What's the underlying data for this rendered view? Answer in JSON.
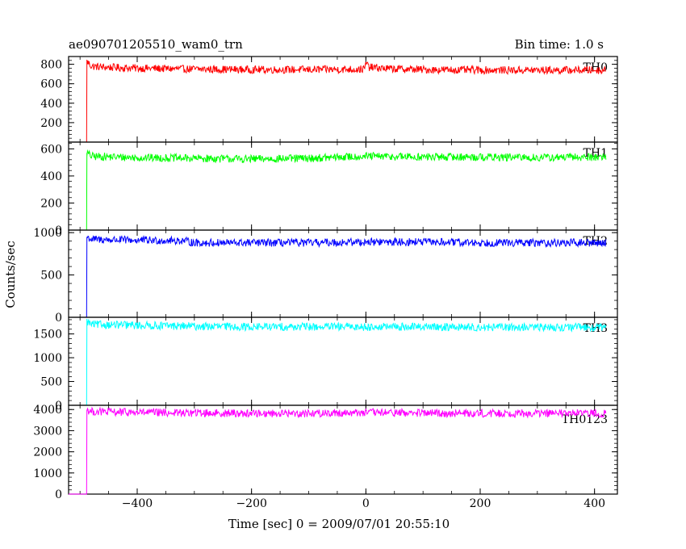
{
  "chart_data": {
    "type": "line",
    "title": "ae090701205510_wam0_trn",
    "subtitle": "Bin time: 1.0 s",
    "xlabel": "Time [sec] 0 = 2009/07/01 20:55:10",
    "ylabel": "Counts/sec",
    "xlim": [
      -520,
      440
    ],
    "x_ticks": [
      -400,
      -200,
      0,
      200,
      400
    ],
    "x_tick_labels": [
      "−400",
      "−200",
      "0",
      "200",
      "400"
    ],
    "panels": [
      {
        "name": "TH0",
        "color": "#ff0000",
        "ylim": [
          0,
          880
        ],
        "y_ticks": [
          0,
          200,
          400,
          600,
          800
        ],
        "y_tick_labels": [
          "",
          "200",
          "400",
          "600",
          "800"
        ],
        "series": [
          {
            "name": "TH0",
            "segments": [
              {
                "x": [
                  -520,
                  -490
                ],
                "y": [
                  0,
                  0
                ]
              },
              {
                "x": [
                  -488,
                  -480,
                  -460,
                  -400,
                  -300,
                  -200,
                  -100,
                  -2,
                  0,
                  5,
                  40,
                  100,
                  200,
                  300,
                  400,
                  420
                ],
                "y": [
                  830,
                  780,
                  770,
                  760,
                  750,
                  745,
                  745,
                  750,
                  820,
                  770,
                  755,
                  745,
                  740,
                  740,
                  740,
                  740
                ]
              }
            ]
          }
        ]
      },
      {
        "name": "TH1",
        "color": "#00ff00",
        "ylim": [
          0,
          650
        ],
        "y_ticks": [
          0,
          200,
          400,
          600
        ],
        "y_tick_labels": [
          "0",
          "200",
          "400",
          "600"
        ],
        "series": [
          {
            "name": "TH1",
            "segments": [
              {
                "x": [
                  -520,
                  -490
                ],
                "y": [
                  0,
                  0
                ]
              },
              {
                "x": [
                  -488,
                  -480,
                  -400,
                  -300,
                  -200,
                  -100,
                  0,
                  100,
                  200,
                  300,
                  400,
                  420
                ],
                "y": [
                  570,
                  545,
                  535,
                  530,
                  525,
                  530,
                  545,
                  540,
                  540,
                  535,
                  540,
                  540
                ]
              }
            ]
          }
        ]
      },
      {
        "name": "TH2",
        "color": "#0000ff",
        "ylim": [
          0,
          1030
        ],
        "y_ticks": [
          0,
          500,
          1000
        ],
        "y_tick_labels": [
          "0",
          "500",
          "1000"
        ],
        "series": [
          {
            "name": "TH2",
            "segments": [
              {
                "x": [
                  -520,
                  -490
                ],
                "y": [
                  0,
                  0
                ]
              },
              {
                "x": [
                  -488,
                  -480,
                  -400,
                  -320,
                  -300,
                  -200,
                  -100,
                  0,
                  100,
                  200,
                  300,
                  400,
                  420
                ],
                "y": [
                  950,
                  920,
                  910,
                  905,
                  880,
                  880,
                  880,
                  890,
                  890,
                  880,
                  880,
                  880,
                  880
                ]
              }
            ]
          }
        ]
      },
      {
        "name": "TH3",
        "color": "#00ffff",
        "ylim": [
          0,
          1850
        ],
        "y_ticks": [
          0,
          500,
          1000,
          1500
        ],
        "y_tick_labels": [
          "0",
          "500",
          "1000",
          "1500"
        ],
        "series": [
          {
            "name": "TH3",
            "segments": [
              {
                "x": [
                  -520,
                  -490
                ],
                "y": [
                  0,
                  0
                ]
              },
              {
                "x": [
                  -488,
                  -480,
                  -400,
                  -300,
                  -200,
                  -100,
                  0,
                  100,
                  200,
                  300,
                  400,
                  420
                ],
                "y": [
                  1760,
                  1700,
                  1680,
                  1660,
                  1650,
                  1650,
                  1650,
                  1650,
                  1640,
                  1640,
                  1640,
                  1640
                ]
              }
            ]
          }
        ]
      },
      {
        "name": "TH0123",
        "color": "#ff00ff",
        "ylim": [
          0,
          4200
        ],
        "y_ticks": [
          0,
          1000,
          2000,
          3000,
          4000
        ],
        "y_tick_labels": [
          "0",
          "1000",
          "2000",
          "3000",
          "4000"
        ],
        "series": [
          {
            "name": "TH0123",
            "segments": [
              {
                "x": [
                  -520,
                  -490
                ],
                "y": [
                  0,
                  0
                ]
              },
              {
                "x": [
                  -488,
                  -480,
                  -400,
                  -300,
                  -200,
                  -100,
                  0,
                  100,
                  200,
                  300,
                  400,
                  420
                ],
                "y": [
                  3990,
                  3900,
                  3860,
                  3840,
                  3820,
                  3820,
                  3860,
                  3830,
                  3820,
                  3820,
                  3820,
                  3820
                ]
              }
            ]
          }
        ]
      }
    ]
  }
}
